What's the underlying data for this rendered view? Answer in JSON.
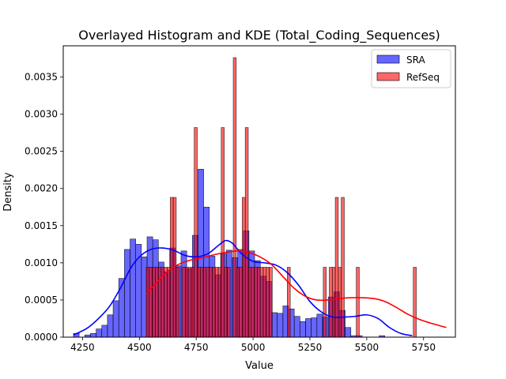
{
  "chart_data": {
    "type": "bar",
    "title": "Overlayed Histogram and KDE (Total_Coding_Sequences)",
    "xlabel": "Value",
    "ylabel": "Density",
    "xlim": [
      4165,
      5890
    ],
    "ylim": [
      0,
      0.00392
    ],
    "xticks": [
      4250,
      4500,
      4750,
      5000,
      5250,
      5500,
      5750
    ],
    "yticks": [
      0,
      0.0005,
      0.001,
      0.0015,
      0.002,
      0.0025,
      0.003,
      0.0035
    ],
    "ytick_labels": [
      "0.0000",
      "0.0005",
      "0.0010",
      "0.0015",
      "0.0020",
      "0.0025",
      "0.0030",
      "0.0035"
    ],
    "legend": {
      "position": "top-right",
      "entries": [
        {
          "label": "SRA",
          "color": "#0000ff"
        },
        {
          "label": "RefSeq",
          "color": "#ff0000"
        }
      ]
    },
    "series": [
      {
        "name": "SRA",
        "color": "#0000ff",
        "fill": "rgba(0,0,255,0.6)",
        "bin_start": 4210,
        "bin_width": 24.9,
        "values": [
          5e-05,
          0.0,
          3e-05,
          5e-05,
          0.00011,
          0.00016,
          0.0003,
          0.00049,
          0.00079,
          0.00118,
          0.00132,
          0.00125,
          0.00108,
          0.00135,
          0.00131,
          0.00101,
          0.00088,
          0.0012,
          0.00096,
          0.00116,
          0.00092,
          0.00137,
          0.00226,
          0.00175,
          0.00109,
          0.00084,
          0.00112,
          0.00117,
          0.00107,
          0.00118,
          0.00143,
          0.00116,
          0.00103,
          0.00082,
          0.00075,
          0.00033,
          0.00032,
          0.00042,
          0.00038,
          0.00028,
          0.00021,
          0.00025,
          0.00026,
          0.00031,
          0.00027,
          0.00054,
          0.00061,
          0.00036,
          0.00013,
          2e-05,
          2e-05,
          0.0,
          0.0,
          0.0,
          2e-05
        ]
      },
      {
        "name": "RefSeq",
        "color": "#ff0000",
        "fill": "rgba(255,0,0,0.6)",
        "bin_start": 4530,
        "bin_width": 13.2,
        "values": [
          0.00094,
          0.00094,
          0.00094,
          0.00094,
          0.00094,
          0.00094,
          0.00094,
          0.00094,
          0.00188,
          0.00188,
          0.00094,
          0.0,
          0.00094,
          0.00094,
          0.00094,
          0.00094,
          0.00282,
          0.00094,
          0.00094,
          0.00094,
          0.00094,
          0.00094,
          0.00094,
          0.00094,
          0.00094,
          0.00282,
          0.00094,
          0.00094,
          0.0,
          0.00376,
          0.00094,
          0.00094,
          0.00188,
          0.00282,
          0.00094,
          0.00094,
          0.00094,
          0.00094,
          0.00094,
          0.00094,
          0.00094,
          0.00094,
          0.0,
          0.0,
          0.0,
          0.0,
          0.0,
          0.00094,
          0.0,
          0.0,
          0.0,
          0.0,
          0.0,
          0.0,
          0.0,
          0.0,
          0.0,
          0.0,
          0.0,
          0.00094,
          0.0,
          0.00094,
          0.00094,
          0.00188,
          0.00094,
          0.00188,
          0.0,
          0.0,
          0.0,
          0.0,
          0.00094,
          0.0,
          0.0,
          0.0,
          0.0,
          0.0,
          0.0,
          0.0,
          0.0,
          0.0,
          0.0,
          0.0,
          0.0,
          0.0,
          0.0,
          0.0,
          0.0,
          0.0,
          0.0,
          0.00094
        ]
      }
    ],
    "kde": [
      {
        "name": "SRA",
        "color": "#0000ff",
        "x": [
          4210,
          4270,
          4320,
          4370,
          4420,
          4460,
          4500,
          4550,
          4600,
          4650,
          4700,
          4750,
          4800,
          4850,
          4880,
          4910,
          4950,
          5000,
          5050,
          5100,
          5150,
          5200,
          5250,
          5300,
          5350,
          5400,
          5450,
          5500,
          5550,
          5600,
          5650,
          5700
        ],
        "y": [
          3e-05,
          0.00012,
          0.00025,
          0.00042,
          0.00068,
          0.00092,
          0.00108,
          0.00118,
          0.0012,
          0.00117,
          0.0011,
          0.00108,
          0.00112,
          0.00124,
          0.0013,
          0.00126,
          0.00112,
          0.00102,
          0.001,
          0.00097,
          0.00087,
          0.0007,
          0.00048,
          0.00034,
          0.00027,
          0.00027,
          0.00028,
          0.0003,
          0.00025,
          0.00013,
          5e-05,
          2e-05
        ]
      },
      {
        "name": "RefSeq",
        "color": "#ff0000",
        "x": [
          4530,
          4580,
          4630,
          4680,
          4730,
          4780,
          4830,
          4880,
          4930,
          4980,
          5030,
          5080,
          5130,
          5180,
          5230,
          5280,
          5330,
          5380,
          5430,
          5480,
          5530,
          5580,
          5630,
          5680,
          5730,
          5780,
          5850
        ],
        "y": [
          0.00058,
          0.00075,
          0.0009,
          0.00099,
          0.00104,
          0.00107,
          0.00111,
          0.00114,
          0.00116,
          0.00114,
          0.00108,
          0.00098,
          0.00082,
          0.00066,
          0.00055,
          0.0005,
          0.0005,
          0.00052,
          0.00053,
          0.00053,
          0.00052,
          0.00048,
          0.0004,
          0.00031,
          0.00024,
          0.00019,
          0.00013
        ]
      }
    ]
  }
}
